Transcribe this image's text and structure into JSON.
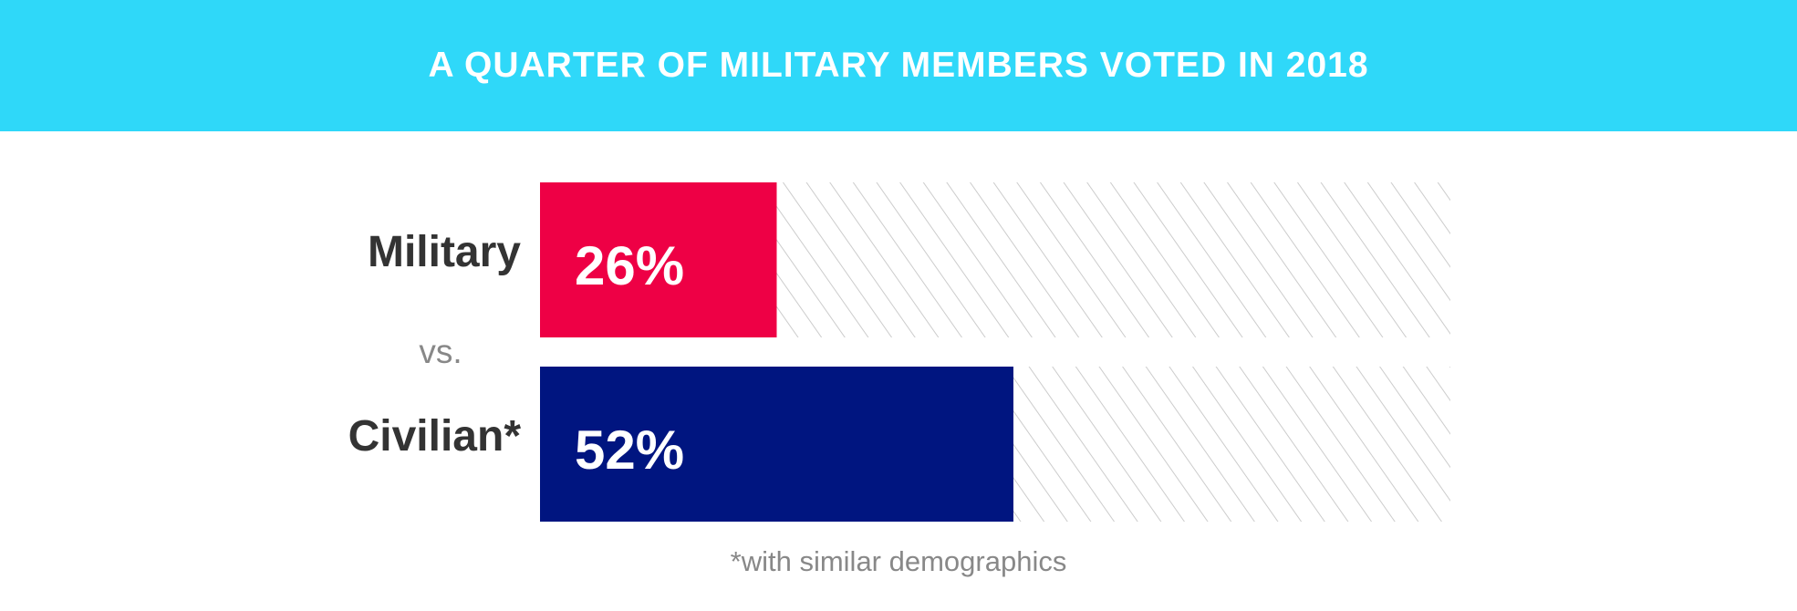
{
  "banner": {
    "title": "A QUARTER OF MILITARY MEMBERS VOTED IN 2018",
    "background_color": "#2fd8f9"
  },
  "separator_label": "vs.",
  "footnote": "*with similar demographics",
  "chart_data": {
    "type": "bar",
    "orientation": "horizontal",
    "title": "A QUARTER OF MILITARY MEMBERS VOTED IN 2018",
    "categories": [
      "Military",
      "Civilian*"
    ],
    "values": [
      26,
      52
    ],
    "value_labels": [
      "26%",
      "52%"
    ],
    "colors": [
      "#ee0045",
      "#001580"
    ],
    "xlim": [
      0,
      100
    ],
    "unit": "%",
    "remainder_style": "diagonal-hatch",
    "grid": false,
    "legend": "none"
  }
}
